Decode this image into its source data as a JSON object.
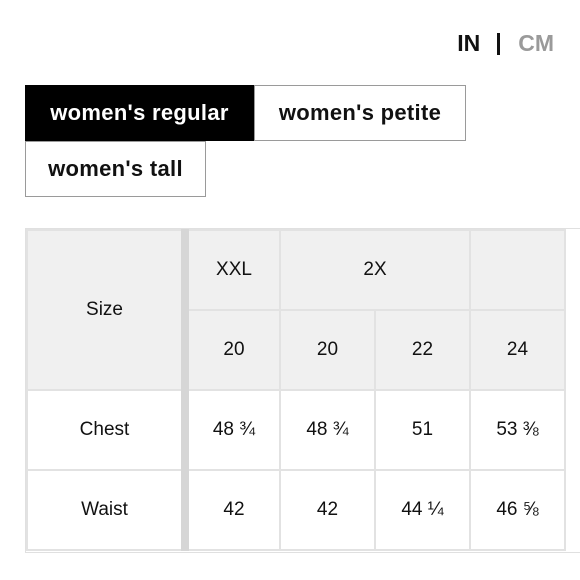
{
  "units": {
    "inch": "IN",
    "cm": "CM"
  },
  "tabs": [
    {
      "label": "women's regular",
      "active": true
    },
    {
      "label": "women's petite",
      "active": false
    },
    {
      "label": "women's tall",
      "active": false
    }
  ],
  "table": {
    "row_header": "Size",
    "size_labels": [
      "XXL",
      "2X",
      ""
    ],
    "sizes": [
      "20",
      "20",
      "22",
      "24"
    ],
    "rows": [
      {
        "label": "Chest",
        "values": [
          "48 ¾",
          "48 ¾",
          "51",
          "53 ⅜"
        ]
      },
      {
        "label": "Waist",
        "values": [
          "42",
          "42",
          "44 ¼",
          "46 ⅝"
        ]
      }
    ]
  }
}
